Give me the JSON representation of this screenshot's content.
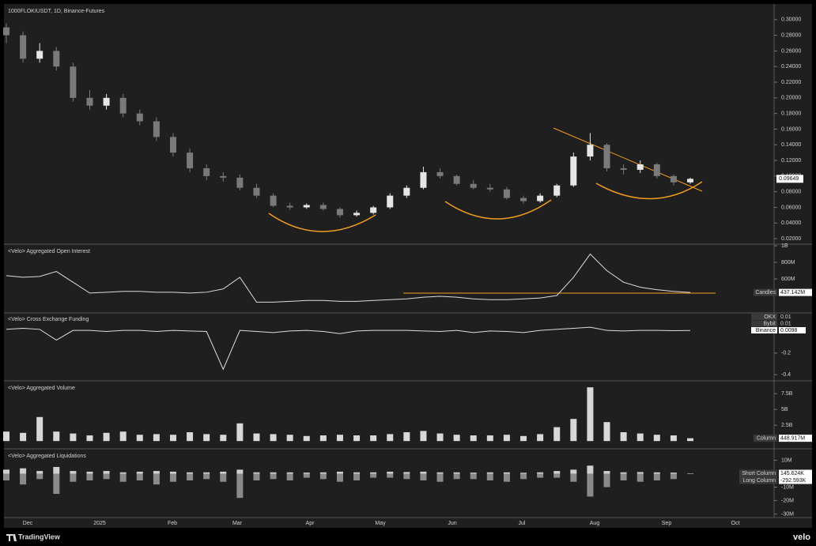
{
  "chart_data": [
    {
      "type": "candlestick",
      "title": "1000FLOKIUSDT, 1D, Binance-Futures",
      "open": [
        0.29,
        0.28,
        0.25,
        0.26,
        0.24,
        0.2,
        0.19,
        0.2,
        0.18,
        0.17,
        0.15,
        0.13,
        0.11,
        0.1,
        0.098,
        0.085,
        0.075,
        0.062,
        0.06,
        0.063,
        0.058,
        0.05,
        0.053,
        0.06,
        0.075,
        0.085,
        0.105,
        0.1,
        0.09,
        0.085,
        0.083,
        0.072,
        0.068,
        0.075,
        0.088,
        0.125,
        0.14,
        0.11,
        0.108,
        0.115,
        0.1,
        0.092
      ],
      "high": [
        0.295,
        0.285,
        0.27,
        0.265,
        0.245,
        0.21,
        0.205,
        0.205,
        0.185,
        0.175,
        0.155,
        0.135,
        0.115,
        0.105,
        0.102,
        0.09,
        0.078,
        0.066,
        0.065,
        0.066,
        0.06,
        0.056,
        0.062,
        0.078,
        0.088,
        0.112,
        0.11,
        0.102,
        0.095,
        0.09,
        0.086,
        0.075,
        0.078,
        0.09,
        0.13,
        0.155,
        0.142,
        0.115,
        0.12,
        0.117,
        0.102,
        0.098
      ],
      "low": [
        0.27,
        0.245,
        0.245,
        0.235,
        0.195,
        0.185,
        0.185,
        0.175,
        0.165,
        0.145,
        0.125,
        0.105,
        0.095,
        0.093,
        0.082,
        0.072,
        0.06,
        0.057,
        0.058,
        0.056,
        0.047,
        0.048,
        0.051,
        0.058,
        0.072,
        0.083,
        0.097,
        0.088,
        0.083,
        0.08,
        0.07,
        0.065,
        0.066,
        0.073,
        0.086,
        0.12,
        0.106,
        0.102,
        0.104,
        0.097,
        0.088,
        0.09
      ],
      "close": [
        0.28,
        0.25,
        0.26,
        0.24,
        0.2,
        0.19,
        0.2,
        0.18,
        0.17,
        0.15,
        0.13,
        0.11,
        0.1,
        0.098,
        0.085,
        0.075,
        0.062,
        0.06,
        0.063,
        0.058,
        0.05,
        0.053,
        0.06,
        0.075,
        0.085,
        0.105,
        0.1,
        0.09,
        0.085,
        0.083,
        0.072,
        0.068,
        0.075,
        0.088,
        0.125,
        0.14,
        0.11,
        0.108,
        0.115,
        0.1,
        0.092,
        0.09649
      ],
      "close_labels": [
        null,
        null,
        null,
        null,
        null,
        null,
        null,
        null,
        null,
        null,
        null,
        null,
        null,
        null,
        null,
        null,
        null,
        null,
        null,
        null,
        null,
        null,
        null,
        null,
        null,
        null,
        null,
        null,
        null,
        null,
        null,
        null,
        null,
        null,
        null,
        null,
        null,
        null,
        null,
        null,
        null,
        "0.09649"
      ],
      "ylim": [
        0.014,
        0.32
      ],
      "yticks": [
        {
          "value": 0.02,
          "label": "0.02000"
        },
        {
          "value": 0.04,
          "label": "0.04000"
        },
        {
          "value": 0.06,
          "label": "0.06000"
        },
        {
          "value": 0.08,
          "label": "0.08000"
        },
        {
          "value": 0.1,
          "label": "0.10000"
        },
        {
          "value": 0.12,
          "label": "0.12000"
        },
        {
          "value": 0.14,
          "label": "0.14000"
        },
        {
          "value": 0.16,
          "label": "0.16000"
        },
        {
          "value": 0.18,
          "label": "0.18000"
        },
        {
          "value": 0.2,
          "label": "0.20000"
        },
        {
          "value": 0.22,
          "label": "0.22000"
        },
        {
          "value": 0.24,
          "label": "0.24000"
        },
        {
          "value": 0.26,
          "label": "0.26000"
        },
        {
          "value": 0.28,
          "label": "0.28000"
        },
        {
          "value": 0.3,
          "label": "0.30000"
        }
      ]
    },
    {
      "type": "line",
      "title": "<Velo> Aggregated Open Interest",
      "name": "Candles",
      "values": [
        640000000,
        620000000,
        630000000,
        690000000,
        560000000,
        430000000,
        440000000,
        450000000,
        450000000,
        440000000,
        440000000,
        430000000,
        440000000,
        480000000,
        620000000,
        320000000,
        320000000,
        330000000,
        340000000,
        340000000,
        330000000,
        330000000,
        340000000,
        350000000,
        360000000,
        380000000,
        390000000,
        380000000,
        360000000,
        350000000,
        350000000,
        360000000,
        370000000,
        400000000,
        620000000,
        900000000,
        700000000,
        560000000,
        500000000,
        470000000,
        450000000,
        437142000
      ],
      "value_labels": [
        null,
        null,
        null,
        null,
        null,
        null,
        null,
        null,
        null,
        null,
        null,
        null,
        null,
        null,
        null,
        null,
        null,
        null,
        null,
        null,
        null,
        null,
        null,
        null,
        null,
        null,
        null,
        null,
        null,
        null,
        null,
        null,
        null,
        null,
        null,
        null,
        null,
        null,
        null,
        null,
        null,
        "437.142M"
      ],
      "ylim": [
        200000000,
        1010000000
      ],
      "yticks": [
        {
          "value": 600000000,
          "label": "600M"
        },
        {
          "value": 800000000,
          "label": "800M"
        },
        {
          "value": 1000000000,
          "label": "1B"
        }
      ]
    },
    {
      "type": "line",
      "title": "<Velo> Cross Exchange Funding",
      "values": [
        0.02,
        0.03,
        0.02,
        -0.08,
        0.01,
        0.01,
        0.0,
        0.01,
        0.01,
        0.0,
        0.01,
        0.005,
        0.0,
        -0.35,
        0.01,
        0.0,
        -0.01,
        0.005,
        0.01,
        0.0,
        -0.02,
        0.005,
        0.01,
        0.01,
        0.01,
        0.005,
        0.0,
        0.01,
        -0.01,
        0.005,
        0.0,
        -0.01,
        0.01,
        0.02,
        0.03,
        0.04,
        0.01,
        0.005,
        0.01,
        0.01,
        0.008,
        0.0098
      ],
      "current": [
        {
          "name": "OKX",
          "value": 0.01
        },
        {
          "name": "Bybit",
          "value": 0.01
        },
        {
          "name": "Binance",
          "value": 0.0098
        }
      ],
      "ylim": [
        -0.45,
        0.165
      ],
      "yticks": [
        -0.4,
        -0.2
      ]
    },
    {
      "type": "bar",
      "title": "<Velo> Aggregated Volume",
      "name": "Column",
      "values": [
        1500000000,
        1300000000,
        3800000000,
        1500000000,
        1200000000,
        900000000,
        1300000000,
        1500000000,
        1000000000,
        1100000000,
        1000000000,
        1400000000,
        1100000000,
        1000000000,
        2800000000,
        1200000000,
        1100000000,
        1000000000,
        800000000,
        900000000,
        1000000000,
        900000000,
        900000000,
        1100000000,
        1400000000,
        1600000000,
        1200000000,
        1000000000,
        900000000,
        900000000,
        1000000000,
        800000000,
        1100000000,
        2200000000,
        3500000000,
        8500000000,
        3000000000,
        1400000000,
        1200000000,
        1000000000,
        900000000,
        448917000
      ],
      "value_labels": [
        null,
        null,
        null,
        null,
        null,
        null,
        null,
        null,
        null,
        null,
        null,
        null,
        null,
        null,
        null,
        null,
        null,
        null,
        null,
        null,
        null,
        null,
        null,
        null,
        null,
        null,
        null,
        null,
        null,
        null,
        null,
        null,
        null,
        null,
        null,
        null,
        null,
        null,
        null,
        null,
        null,
        "448.917M"
      ],
      "ylim": [
        -1100000000,
        9400000000
      ],
      "yticks": [
        {
          "value": 2500000000,
          "label": "2.5B"
        },
        {
          "value": 5000000000,
          "label": "5B"
        },
        {
          "value": 7500000000,
          "label": "7.5B"
        }
      ]
    },
    {
      "type": "bar",
      "title": "<Velo> Aggregated Liquidations",
      "series": [
        {
          "name": "Short Column",
          "color": "#cfcfcf",
          "values": [
            3000000,
            4000000,
            2000000,
            5000000,
            2000000,
            1500000,
            2000000,
            1000000,
            1500000,
            2000000,
            1500000,
            1000000,
            1000000,
            1500000,
            3000000,
            1000000,
            1000000,
            1000000,
            800000,
            1000000,
            1500000,
            1000000,
            1000000,
            1500000,
            1200000,
            1500000,
            1000000,
            1000000,
            800000,
            1000000,
            1000000,
            700000,
            1000000,
            2000000,
            3000000,
            6000000,
            2000000,
            1000000,
            1200000,
            1000000,
            800000,
            145624
          ],
          "value_labels": [
            null,
            null,
            null,
            null,
            null,
            null,
            null,
            null,
            null,
            null,
            null,
            null,
            null,
            null,
            null,
            null,
            null,
            null,
            null,
            null,
            null,
            null,
            null,
            null,
            null,
            null,
            null,
            null,
            null,
            null,
            null,
            null,
            null,
            null,
            null,
            null,
            null,
            null,
            null,
            null,
            null,
            "145.624K"
          ]
        },
        {
          "name": "Long Column",
          "color": "#8a8a8a",
          "values": [
            -5000000,
            -8000000,
            -4000000,
            -15000000,
            -6000000,
            -5000000,
            -4000000,
            -6000000,
            -5000000,
            -8000000,
            -6000000,
            -5000000,
            -4000000,
            -6000000,
            -18000000,
            -5000000,
            -4000000,
            -5000000,
            -3000000,
            -4000000,
            -6000000,
            -5000000,
            -3000000,
            -3000000,
            -4000000,
            -5000000,
            -6000000,
            -4000000,
            -4000000,
            -5000000,
            -6000000,
            -4000000,
            -3000000,
            -3000000,
            -6000000,
            -17000000,
            -10000000,
            -5000000,
            -6000000,
            -5000000,
            -4000000,
            -292593
          ],
          "value_labels": [
            null,
            null,
            null,
            null,
            null,
            null,
            null,
            null,
            null,
            null,
            null,
            null,
            null,
            null,
            null,
            null,
            null,
            null,
            null,
            null,
            null,
            null,
            null,
            null,
            null,
            null,
            null,
            null,
            null,
            null,
            null,
            null,
            null,
            null,
            null,
            null,
            null,
            null,
            null,
            null,
            null,
            "-292.593K"
          ]
        }
      ],
      "ylim": [
        -32600000,
        17900000
      ],
      "yticks": [
        {
          "value": -30000000,
          "label": "-30M"
        },
        {
          "value": -20000000,
          "label": "-20M"
        },
        {
          "value": -10000000,
          "label": "-10M"
        },
        {
          "value": 10000000,
          "label": "10M"
        }
      ]
    }
  ],
  "x_axis": {
    "categories": [
      "Dec",
      "2025",
      "Feb",
      "Mar",
      "Apr",
      "May",
      "Jun",
      "Jul",
      "Aug",
      "Sep",
      "Oct"
    ]
  },
  "footer": {
    "brand": "TradingView",
    "watermark": "velo"
  }
}
